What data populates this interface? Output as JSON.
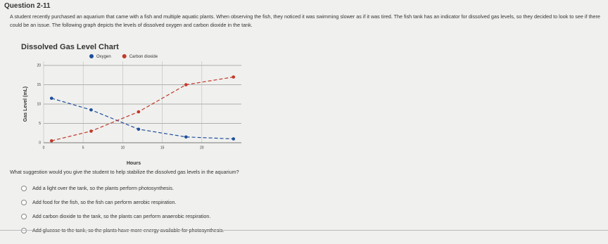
{
  "header": {
    "title": "Question 2-11"
  },
  "prompt": "A student recently purchased an aquarium that came with a fish and multiple aquatic plants. When observing the fish, they noticed it was swimming slower as if it was tired. The fish tank has an indicator for dissolved gas levels, so they decided to look to see if there could be an issue. The following graph depicts the levels of dissolved oxygen and carbon dioxide in the tank.",
  "chart_data": {
    "type": "line",
    "title": "Dissolved Gas Level Chart",
    "x_label": "Hours",
    "y_label": "Gas Level (mL)",
    "x": [
      1,
      6,
      12,
      18,
      24
    ],
    "series": [
      {
        "name": "Oxygen",
        "color": "#1f4e9c",
        "values": [
          11.5,
          8.5,
          3.5,
          1.5,
          1
        ]
      },
      {
        "name": "Carbon dioxide",
        "color": "#c0392b",
        "values": [
          0.5,
          3,
          8,
          15,
          17
        ]
      }
    ],
    "xlim": [
      0,
      25
    ],
    "xticks": [
      0,
      5,
      10,
      15,
      20
    ],
    "ylim": [
      0,
      21
    ],
    "yticks": [
      0,
      5,
      10,
      15,
      20
    ],
    "grid": true,
    "legend": "top"
  },
  "question": "What suggestion would you give the student to help stabilize the dissolved gas levels in the aquarium?",
  "options": [
    "Add a light over the tank, so the plants perform photosynthesis.",
    "Add food for the fish, so the fish can perform aerobic respiration.",
    "Add carbon dioxide to the tank, so the plants can perform anaerobic respiration.",
    "Add glucose to the tank, so the plants have more energy available for photosynthesis."
  ]
}
